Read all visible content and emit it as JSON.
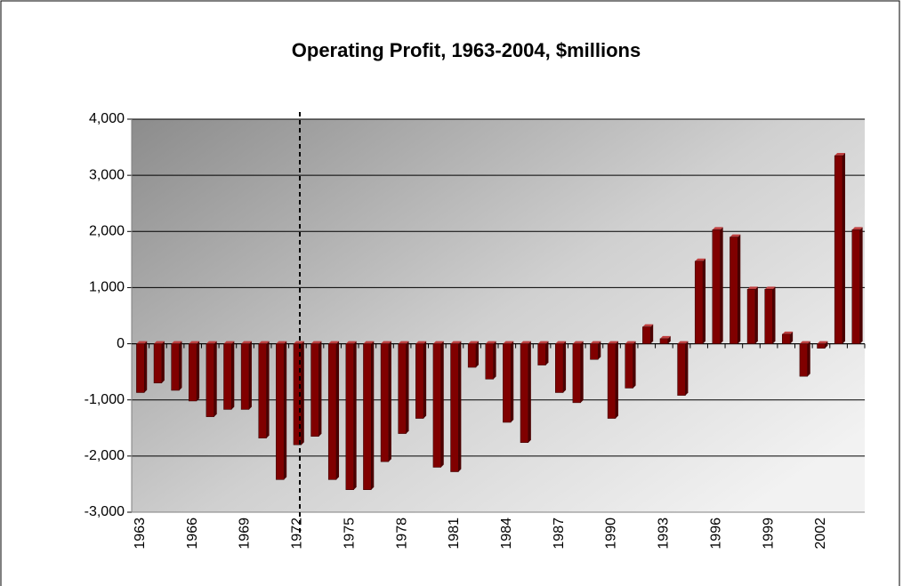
{
  "chart_data": {
    "type": "bar",
    "title": "Operating Profit, 1963-2004, $millions",
    "categories": [
      "1963",
      null,
      null,
      "1966",
      null,
      null,
      "1969",
      null,
      null,
      "1972",
      null,
      null,
      "1975",
      null,
      null,
      "1978",
      null,
      null,
      "1981",
      null,
      null,
      "1984",
      null,
      null,
      "1987",
      null,
      null,
      "1990",
      null,
      null,
      "1993",
      null,
      null,
      "1996",
      null,
      null,
      "1999",
      null,
      null,
      "2002",
      null,
      null
    ],
    "values": [
      -870,
      -700,
      -830,
      -1020,
      -1300,
      -1170,
      -1170,
      -1680,
      -2420,
      -1800,
      -1650,
      -2420,
      -2600,
      -2600,
      -2100,
      -1600,
      -1330,
      -2200,
      -2280,
      -420,
      -630,
      -1400,
      -1760,
      -380,
      -870,
      -1050,
      -280,
      -1330,
      -790,
      300,
      90,
      -920,
      1470,
      2030,
      1900,
      970,
      970,
      170,
      -580,
      -80,
      3350,
      2030
    ],
    "color": "#800000",
    "ylim": [
      -3000,
      4000
    ],
    "yticks": [
      {
        "value": -3000,
        "label": "-3,000"
      },
      {
        "value": -2000,
        "label": "-2,000"
      },
      {
        "value": -1000,
        "label": "-1,000"
      },
      0,
      {
        "value": 1000,
        "label": "1,000"
      },
      {
        "value": 2000,
        "label": "2,000"
      },
      {
        "value": 3000,
        "label": "3,000"
      },
      {
        "value": 4000,
        "label": "4,000"
      }
    ],
    "grid": true
  }
}
